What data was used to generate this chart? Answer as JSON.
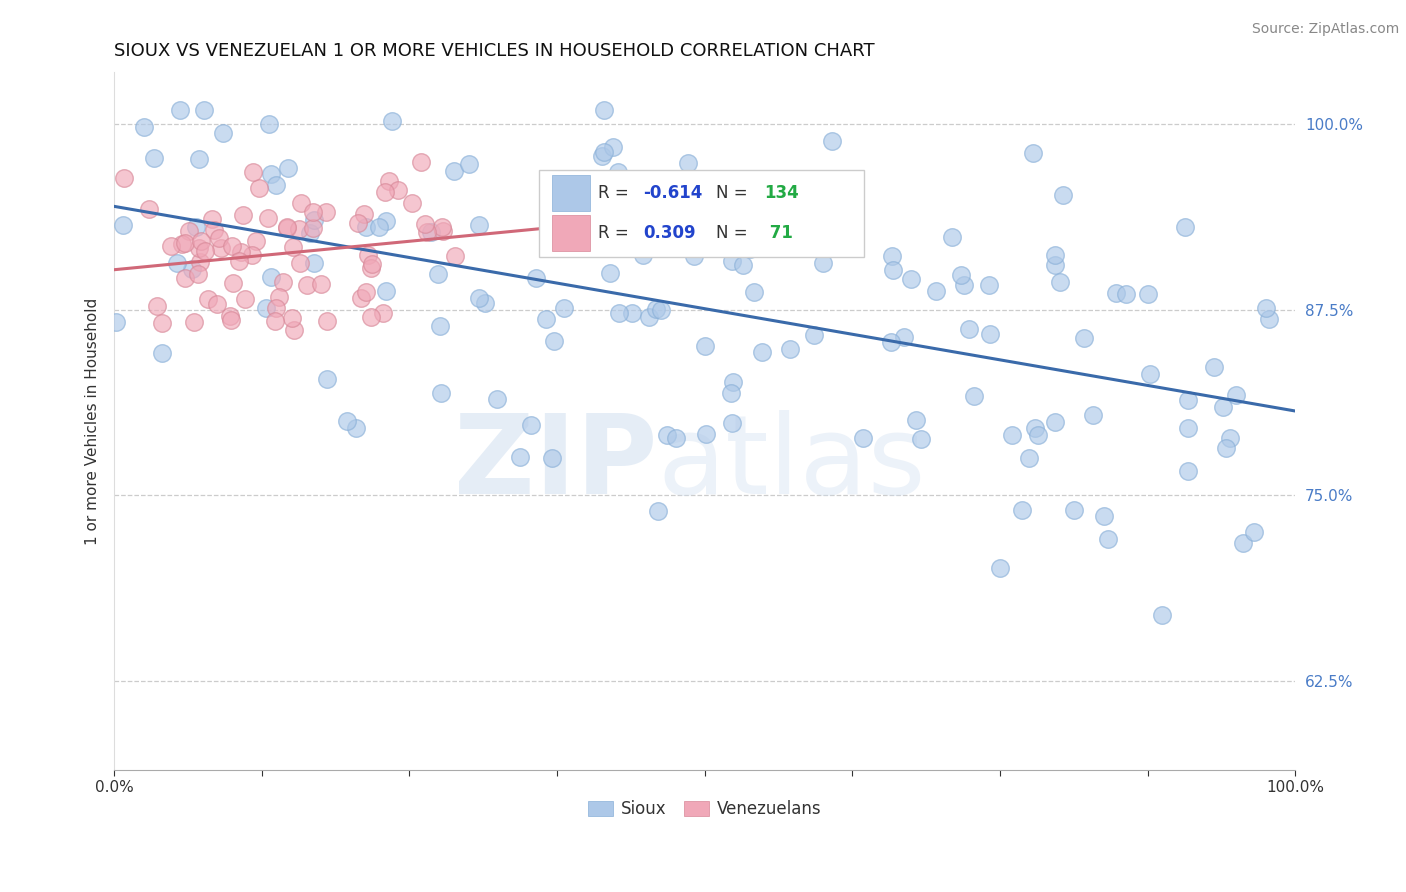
{
  "title": "SIOUX VS VENEZUELAN 1 OR MORE VEHICLES IN HOUSEHOLD CORRELATION CHART",
  "source": "Source: ZipAtlas.com",
  "ylabel": "1 or more Vehicles in Household",
  "xlim": [
    0.0,
    1.0
  ],
  "ylim": [
    0.565,
    1.035
  ],
  "yticks": [
    0.625,
    0.75,
    0.875,
    1.0
  ],
  "ytick_labels": [
    "62.5%",
    "75.0%",
    "87.5%",
    "100.0%"
  ],
  "sioux_color": "#adc8e8",
  "sioux_edge_color": "#8ab0d8",
  "venezuelan_color": "#f0a8b8",
  "venezuelan_edge_color": "#d88898",
  "sioux_line_color": "#3a6aaa",
  "venezuelan_line_color": "#d06878",
  "sioux_R": -0.614,
  "sioux_N": 134,
  "venezuelan_R": 0.309,
  "venezuelan_N": 71,
  "legend_R_color": "#2244cc",
  "legend_N_color": "#22aa44",
  "legend_label_color": "#333333",
  "background_color": "#ffffff",
  "grid_color": "#cccccc",
  "title_fontsize": 13,
  "tick_fontsize": 11,
  "ylabel_fontsize": 11,
  "source_fontsize": 10,
  "legend_fontsize": 12,
  "dot_size": 160,
  "dot_alpha": 0.65,
  "sioux_seed": 7,
  "venezuelan_seed": 99,
  "watermark_color": "#d0dff0"
}
